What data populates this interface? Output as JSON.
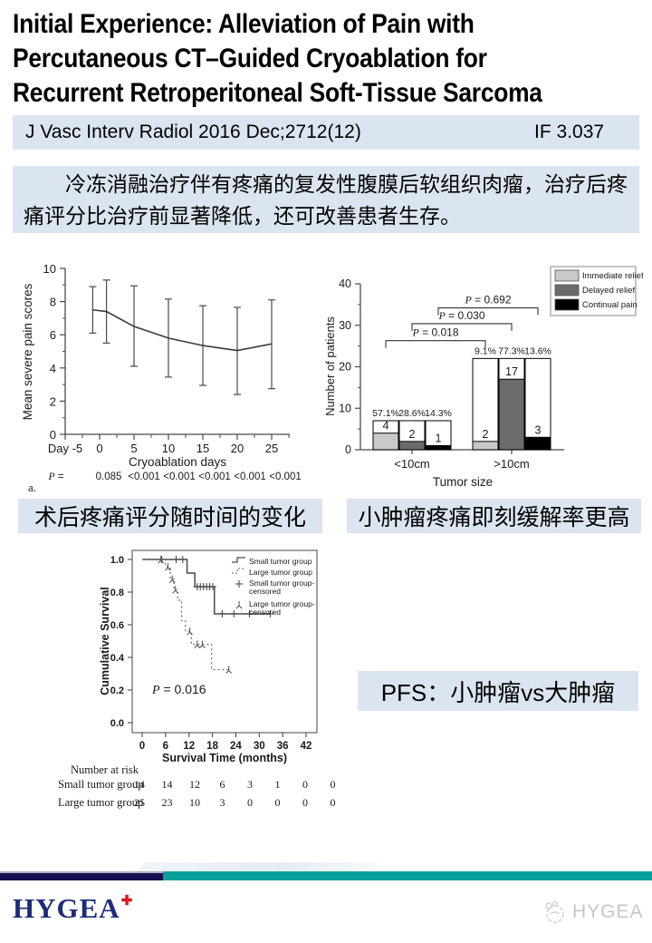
{
  "title": {
    "lines": [
      "Initial Experience: Alleviation of Pain with",
      "Percutaneous CT–Guided Cryoablation for",
      "Recurrent Retroperitoneal Soft-Tissue Sarcoma"
    ]
  },
  "journal_bar": {
    "citation": "J Vasc Interv Radiol 2016 Dec;2712(12)",
    "impact_factor": "IF 3.037"
  },
  "summary_cn": "冷冻消融治疗伴有疼痛的复发性腹膜后软组织肉瘤，治疗后疼痛评分比治疗前显著降低，还可改善患者生存。",
  "captions": {
    "pain_chart": "术后疼痛评分随时间的变化",
    "bar_chart": "小肿瘤疼痛即刻缓解率更高",
    "pfs": "PFS：小肿瘤vs大肿瘤"
  },
  "footer": {
    "logo_text": "HYGEA",
    "logo_plus": "✚",
    "watermark_text": "HYGEA"
  },
  "colors": {
    "panel_blue": "#dbe5f1",
    "footer_navy": "#14104f",
    "footer_teal": "#0aa09a",
    "logo_navy": "#1c2b7a",
    "logo_red": "#e01b1b"
  },
  "chart_data": [
    {
      "id": "pain-line-chart",
      "type": "line",
      "xlabel": "Cryoablation days",
      "ylabel": "Mean severe pain scores",
      "xlim": [
        -5,
        27
      ],
      "ylim": [
        0,
        10
      ],
      "xticks": [
        {
          "value": -5,
          "label": "Day -5"
        },
        {
          "value": 0,
          "label": "0"
        },
        {
          "value": 5,
          "label": "5"
        },
        {
          "value": 10,
          "label": "10"
        },
        {
          "value": 15,
          "label": "15"
        },
        {
          "value": 20,
          "label": "20"
        },
        {
          "value": 25,
          "label": "25"
        }
      ],
      "yticks": [
        0,
        2,
        4,
        6,
        8,
        10
      ],
      "series": [
        {
          "name": "Mean severe pain score",
          "points": [
            {
              "x": -1,
              "y": 7.5,
              "lo": 6.1,
              "hi": 8.9
            },
            {
              "x": 1,
              "y": 7.4,
              "lo": 5.5,
              "hi": 9.3
            },
            {
              "x": 5,
              "y": 6.5,
              "lo": 4.1,
              "hi": 8.95
            },
            {
              "x": 10,
              "y": 5.8,
              "lo": 3.45,
              "hi": 8.15
            },
            {
              "x": 15,
              "y": 5.35,
              "lo": 2.95,
              "hi": 7.75
            },
            {
              "x": 20,
              "y": 5.05,
              "lo": 2.4,
              "hi": 7.65
            },
            {
              "x": 25,
              "y": 5.45,
              "lo": 2.75,
              "hi": 8.1
            }
          ]
        }
      ],
      "p_row": {
        "label": "P =",
        "values": [
          "0.085",
          "<0.001",
          "<0.001",
          "<0.001",
          "<0.001",
          "<0.001"
        ]
      },
      "panel_label": "a."
    },
    {
      "id": "relief-bar-chart",
      "type": "bar",
      "xlabel": "Tumor size",
      "ylabel": "Number of patients",
      "ylim": [
        0,
        40
      ],
      "yticks": [
        0,
        10,
        20,
        30,
        40
      ],
      "legend": [
        {
          "label": "Immediate relief",
          "color": "#c8c8c8"
        },
        {
          "label": "Delayed relief",
          "color": "#6b6b6b"
        },
        {
          "label": "Continual pain",
          "color": "#000000"
        }
      ],
      "groups": [
        {
          "label": "<10cm",
          "total": 7,
          "values": [
            4,
            2,
            1
          ],
          "pcts": [
            "57.1%",
            "28.6%",
            "14.3%"
          ]
        },
        {
          "label": ">10cm",
          "total": 22,
          "values": [
            2,
            17,
            3
          ],
          "pcts": [
            "9.1%",
            "77.3%",
            "13.6%"
          ]
        }
      ],
      "brackets": [
        {
          "label": "P = 0.018",
          "from": [
            0,
            0
          ],
          "to": [
            1,
            0
          ],
          "height": 26.3
        },
        {
          "label": "P = 0.030",
          "from": [
            0,
            1
          ],
          "to": [
            1,
            1
          ],
          "height": 30.4
        },
        {
          "label": "P = 0.692",
          "from": [
            0,
            2
          ],
          "to": [
            1,
            2
          ],
          "height": 34.2
        }
      ]
    },
    {
      "id": "km-survival-chart",
      "type": "line",
      "subtype": "kaplan-meier",
      "xlabel": "Survival Time (months)",
      "ylabel": "Cumulative Survival",
      "xlim": [
        0,
        42
      ],
      "ylim": [
        0,
        1
      ],
      "xticks": [
        0,
        6,
        12,
        18,
        24,
        30,
        36,
        42
      ],
      "ytick_labels": [
        "0.0",
        "0.2",
        "0.4",
        "0.6",
        "0.8",
        "1.0"
      ],
      "p_label": "P = 0.016",
      "series": [
        {
          "name": "Small tumor group",
          "line": "solid",
          "marker": "plus",
          "steps": [
            [
              0,
              1
            ],
            [
              11.5,
              1
            ],
            [
              11.5,
              0.917
            ],
            [
              13.5,
              0.917
            ],
            [
              13.5,
              0.833
            ],
            [
              18.5,
              0.833
            ],
            [
              18.5,
              0.667
            ],
            [
              32.8,
              0.667
            ]
          ],
          "censored": [
            [
              5,
              1
            ],
            [
              8.7,
              1
            ],
            [
              10.4,
              1
            ],
            [
              14.1,
              0.833
            ],
            [
              14.9,
              0.833
            ],
            [
              15.7,
              0.833
            ],
            [
              16.5,
              0.833
            ],
            [
              17.3,
              0.833
            ],
            [
              18.1,
              0.833
            ],
            [
              20.5,
              0.667
            ],
            [
              23.5,
              0.667
            ],
            [
              27.5,
              0.667
            ],
            [
              32.8,
              0.667
            ]
          ]
        },
        {
          "name": "Large tumor group",
          "line": "dotted",
          "marker": "tripod",
          "steps": [
            [
              0,
              1
            ],
            [
              6,
              1
            ],
            [
              6,
              0.955
            ],
            [
              7.2,
              0.955
            ],
            [
              7.2,
              0.88
            ],
            [
              8.1,
              0.88
            ],
            [
              8.1,
              0.815
            ],
            [
              9.1,
              0.815
            ],
            [
              9.1,
              0.75
            ],
            [
              10.1,
              0.75
            ],
            [
              10.1,
              0.625
            ],
            [
              11.1,
              0.625
            ],
            [
              11.1,
              0.56
            ],
            [
              12.6,
              0.56
            ],
            [
              12.6,
              0.48
            ],
            [
              17.8,
              0.48
            ],
            [
              17.8,
              0.325
            ],
            [
              22.6,
              0.325
            ]
          ],
          "censored": [
            [
              4.8,
              1
            ],
            [
              6.6,
              0.955
            ],
            [
              7.7,
              0.88
            ],
            [
              8.5,
              0.815
            ],
            [
              12.2,
              0.56
            ],
            [
              14.1,
              0.48
            ],
            [
              15.4,
              0.48
            ],
            [
              22.2,
              0.325
            ]
          ]
        }
      ],
      "legend": [
        "Small tumor group",
        "Large tumor group",
        "Small tumor group-censored",
        "Large tumor group-censored"
      ],
      "risk_table": {
        "header": "Number at risk",
        "time_points": [
          0,
          6,
          12,
          18,
          24,
          30,
          36,
          42
        ],
        "rows": [
          {
            "label": "Small tumor group",
            "values": [
              "14",
              "14",
              "12",
              "6",
              "3",
              "1",
              "0",
              "0"
            ]
          },
          {
            "label": "Large tumor group",
            "values": [
              "25",
              "23",
              "10",
              "3",
              "0",
              "0",
              "0",
              "0"
            ]
          }
        ]
      }
    }
  ]
}
